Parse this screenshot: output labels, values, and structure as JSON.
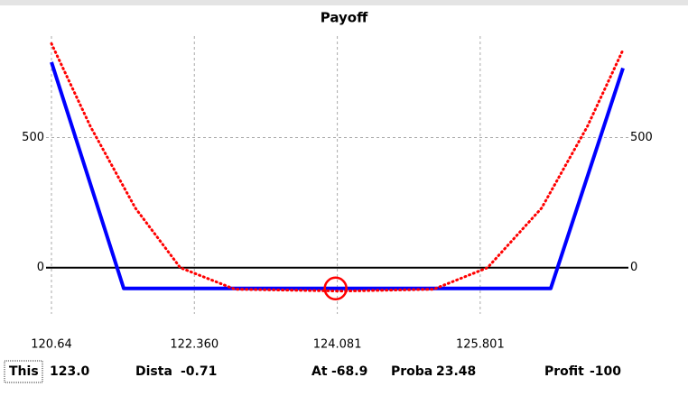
{
  "chart_data": {
    "type": "line",
    "title": "Payoff",
    "series": [
      {
        "color": "#0000ff",
        "style": "solid",
        "x": [
          120.64,
          121.51,
          126.65,
          127.52
        ],
        "values": [
          790,
          -80,
          -80,
          767
        ]
      },
      {
        "color": "#ff0000",
        "style": "dotted",
        "x": [
          120.64,
          121.11,
          121.65,
          122.19,
          122.85,
          124.15,
          125.24,
          125.89,
          126.54,
          127.09,
          127.52
        ],
        "values": [
          861,
          542,
          229,
          0,
          -83,
          -90,
          -83,
          0,
          229,
          542,
          837
        ]
      }
    ],
    "marker": {
      "x": 124.06,
      "y": -80,
      "color": "#ff0000"
    },
    "xlim": [
      120.64,
      127.52
    ],
    "xticks": [
      120.64,
      {
        "value": 122.36,
        "label": "122.360"
      },
      124.081,
      125.801
    ],
    "ylim": [
      -150,
      890
    ],
    "yticks": [
      0,
      500
    ],
    "y2lim": [
      -150,
      890
    ],
    "y2ticks": [
      0,
      500
    ],
    "grid": true,
    "status": [
      {
        "label": "This",
        "value": "123.0"
      },
      {
        "label": "Dista",
        "value": "-0.71"
      },
      {
        "label": "At",
        "value": "-68.9"
      },
      {
        "label": "Proba",
        "value": "23.48"
      },
      {
        "label": "Profit",
        "value": "-100"
      }
    ]
  }
}
